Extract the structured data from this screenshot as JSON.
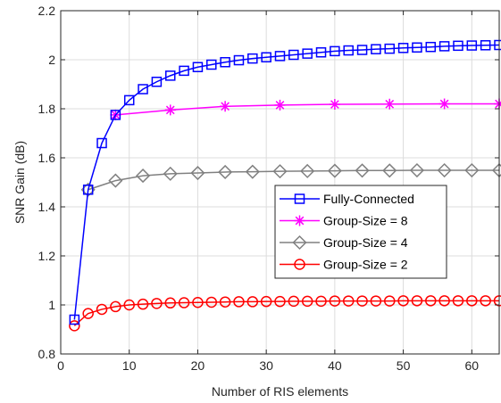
{
  "chart_data": {
    "type": "line",
    "title": "",
    "xlabel": "Number of RIS elements",
    "ylabel": "SNR Gain (dB)",
    "xlim": [
      0,
      64
    ],
    "ylim": [
      0.8,
      2.2
    ],
    "xticks": [
      0,
      10,
      20,
      30,
      40,
      50,
      60
    ],
    "yticks": [
      0.8,
      1,
      1.2,
      1.4,
      1.6,
      1.8,
      2,
      2.2
    ],
    "ytick_labels": [
      "0.8",
      "1",
      "1.2",
      "1.4",
      "1.6",
      "1.8",
      "2",
      "2.2"
    ],
    "grid": true,
    "legend_position": "center-right",
    "series": [
      {
        "name": "Fully-Connected",
        "color": "#0000ff",
        "marker": "square",
        "x": [
          2,
          4,
          6,
          8,
          10,
          12,
          14,
          16,
          18,
          20,
          22,
          24,
          26,
          28,
          30,
          32,
          34,
          36,
          38,
          40,
          42,
          44,
          46,
          48,
          50,
          52,
          54,
          56,
          58,
          60,
          62,
          64
        ],
        "y": [
          0.94,
          1.47,
          1.66,
          1.775,
          1.835,
          1.88,
          1.91,
          1.935,
          1.955,
          1.97,
          1.98,
          1.99,
          1.998,
          2.005,
          2.01,
          2.015,
          2.02,
          2.025,
          2.03,
          2.035,
          2.038,
          2.04,
          2.043,
          2.045,
          2.048,
          2.05,
          2.052,
          2.055,
          2.057,
          2.058,
          2.059,
          2.06
        ]
      },
      {
        "name": "Group-Size = 8",
        "color": "#ff00ff",
        "marker": "star",
        "x": [
          8,
          16,
          24,
          32,
          40,
          48,
          56,
          64
        ],
        "y": [
          1.775,
          1.795,
          1.81,
          1.815,
          1.818,
          1.819,
          1.82,
          1.82
        ]
      },
      {
        "name": "Group-Size = 4",
        "color": "#808080",
        "marker": "diamond",
        "x": [
          4,
          8,
          12,
          16,
          20,
          24,
          28,
          32,
          36,
          40,
          44,
          48,
          52,
          56,
          60,
          64
        ],
        "y": [
          1.47,
          1.507,
          1.527,
          1.535,
          1.538,
          1.542,
          1.543,
          1.545,
          1.546,
          1.547,
          1.548,
          1.548,
          1.549,
          1.549,
          1.549,
          1.549
        ]
      },
      {
        "name": "Group-Size = 2",
        "color": "#ff0000",
        "marker": "circle",
        "x": [
          2,
          4,
          6,
          8,
          10,
          12,
          14,
          16,
          18,
          20,
          22,
          24,
          26,
          28,
          30,
          32,
          34,
          36,
          38,
          40,
          42,
          44,
          46,
          48,
          50,
          52,
          54,
          56,
          58,
          60,
          62,
          64
        ],
        "y": [
          0.915,
          0.965,
          0.982,
          0.993,
          1.0,
          1.003,
          1.006,
          1.008,
          1.009,
          1.01,
          1.011,
          1.012,
          1.013,
          1.013,
          1.014,
          1.014,
          1.015,
          1.015,
          1.015,
          1.016,
          1.016,
          1.016,
          1.016,
          1.016,
          1.017,
          1.017,
          1.017,
          1.017,
          1.017,
          1.017,
          1.017,
          1.017
        ]
      }
    ]
  }
}
